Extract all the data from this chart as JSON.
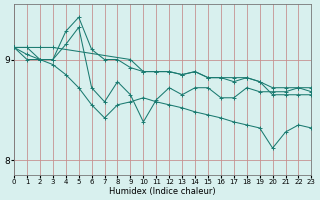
{
  "xlabel": "Humidex (Indice chaleur)",
  "background_color": "#d8f0ee",
  "grid_color_main": "#b0d8d5",
  "grid_color_red": "#d08888",
  "line_color": "#1a7a70",
  "xlim": [
    0,
    23
  ],
  "ylim": [
    7.85,
    9.55
  ],
  "yticks": [
    8,
    9
  ],
  "xticks": [
    0,
    1,
    2,
    3,
    4,
    5,
    6,
    7,
    8,
    9,
    10,
    11,
    12,
    13,
    14,
    15,
    16,
    17,
    18,
    19,
    20,
    21,
    22,
    23
  ],
  "lines": [
    {
      "x": [
        0,
        1,
        2,
        3,
        9,
        10,
        11,
        12,
        13,
        14,
        15,
        16,
        17,
        18,
        19,
        20,
        21,
        22,
        23
      ],
      "y": [
        9.12,
        9.12,
        9.12,
        9.12,
        9.0,
        8.88,
        8.88,
        8.88,
        8.85,
        8.88,
        8.82,
        8.82,
        8.82,
        8.82,
        8.78,
        8.65,
        8.65,
        8.65,
        8.65
      ]
    },
    {
      "x": [
        0,
        1,
        2,
        3,
        4,
        5,
        6,
        7,
        8,
        9,
        10,
        11,
        12,
        13,
        14,
        15,
        16,
        17,
        18,
        19,
        20,
        21,
        22,
        23
      ],
      "y": [
        9.12,
        9.12,
        9.0,
        9.0,
        9.28,
        9.42,
        9.1,
        9.0,
        9.0,
        8.92,
        8.88,
        8.88,
        8.88,
        8.85,
        8.88,
        8.82,
        8.82,
        8.78,
        8.82,
        8.78,
        8.72,
        8.72,
        8.72,
        8.72
      ]
    },
    {
      "x": [
        0,
        1,
        2,
        3,
        4,
        5,
        6,
        7,
        8,
        9,
        10,
        11,
        12,
        13,
        14,
        15,
        16,
        17,
        18,
        19,
        20,
        21,
        22,
        23
      ],
      "y": [
        9.12,
        9.0,
        9.0,
        9.0,
        9.15,
        9.32,
        8.72,
        8.58,
        8.78,
        8.65,
        8.38,
        8.6,
        8.72,
        8.65,
        8.72,
        8.72,
        8.62,
        8.62,
        8.72,
        8.68,
        8.68,
        8.68,
        8.72,
        8.68
      ]
    },
    {
      "x": [
        0,
        1,
        2,
        3,
        4,
        5,
        6,
        7,
        8,
        9,
        10,
        11,
        12,
        13,
        14,
        15,
        16,
        17,
        18,
        19,
        20,
        21,
        22,
        23
      ],
      "y": [
        9.12,
        9.05,
        9.0,
        8.95,
        8.85,
        8.72,
        8.55,
        8.42,
        8.55,
        8.58,
        8.62,
        8.58,
        8.55,
        8.52,
        8.48,
        8.45,
        8.42,
        8.38,
        8.35,
        8.32,
        8.12,
        8.28,
        8.35,
        8.32
      ]
    }
  ]
}
